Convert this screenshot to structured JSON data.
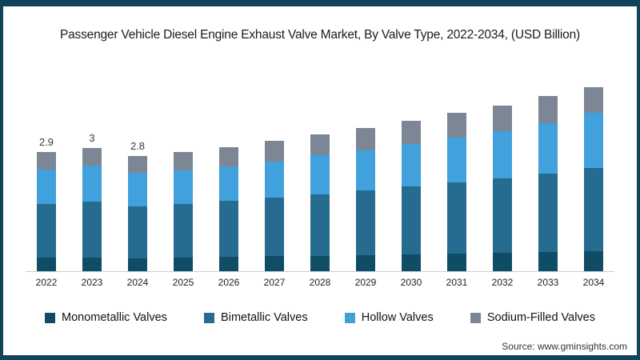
{
  "title": "Passenger Vehicle Diesel Engine Exhaust Valve Market, By Valve Type, 2022-2034, (USD Billion)",
  "source": "Source: www.gminsights.com",
  "colors": {
    "frame": "#0e4559",
    "axis_line": "#cccccc",
    "value_label": "#3a3a3a"
  },
  "chart_data": {
    "type": "bar",
    "stacked": true,
    "title": "Passenger Vehicle Diesel Engine Exhaust Valve Market, By Valve Type, 2022-2034, (USD Billion)",
    "xlabel": "",
    "ylabel": "USD Billion",
    "grid": false,
    "legend_position": "bottom",
    "categories": [
      "2022",
      "2023",
      "2024",
      "2025",
      "2026",
      "2027",
      "2028",
      "2029",
      "2030",
      "2031",
      "2032",
      "2033",
      "2034"
    ],
    "series": [
      {
        "name": "Monometallic Valves",
        "color": "#0f4d67",
        "values": [
          0.33,
          0.34,
          0.32,
          0.34,
          0.35,
          0.36,
          0.37,
          0.39,
          0.41,
          0.43,
          0.45,
          0.47,
          0.48
        ]
      },
      {
        "name": "Bimetallic Valves",
        "color": "#266b90",
        "values": [
          1.3,
          1.35,
          1.26,
          1.3,
          1.35,
          1.43,
          1.5,
          1.57,
          1.64,
          1.73,
          1.8,
          1.9,
          2.02
        ]
      },
      {
        "name": "Hollow Valves",
        "color": "#41a1dc",
        "values": [
          0.84,
          0.87,
          0.81,
          0.8,
          0.84,
          0.88,
          0.94,
          0.98,
          1.04,
          1.09,
          1.15,
          1.23,
          1.34
        ]
      },
      {
        "name": "Sodium-Filled Valves",
        "color": "#7c8695",
        "values": [
          0.43,
          0.44,
          0.41,
          0.46,
          0.47,
          0.49,
          0.51,
          0.53,
          0.56,
          0.59,
          0.62,
          0.65,
          0.63
        ]
      }
    ],
    "totals": [
      2.9,
      3.0,
      2.8,
      2.9,
      3.01,
      3.16,
      3.32,
      3.47,
      3.65,
      3.84,
      4.02,
      4.25,
      4.47
    ],
    "bar_total_labels": [
      "2.9",
      "3",
      "2.8",
      "",
      "",
      "",
      "",
      "",
      "",
      "",
      "",
      "",
      ""
    ]
  }
}
